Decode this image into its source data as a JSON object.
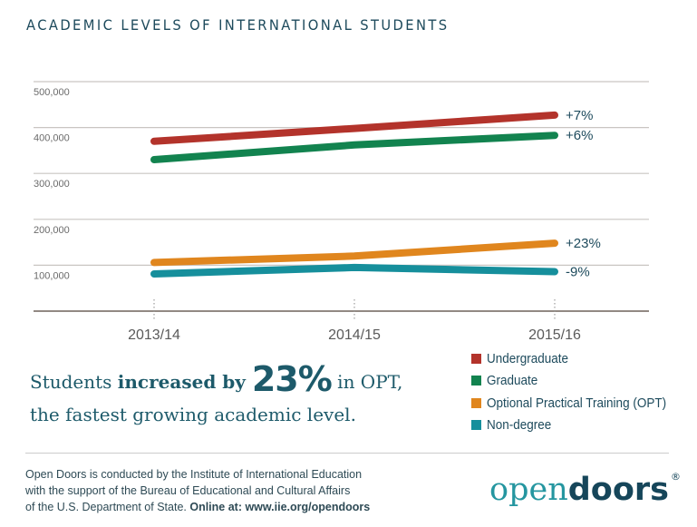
{
  "title": "ACADEMIC LEVELS OF INTERNATIONAL STUDENTS",
  "chart_data": {
    "type": "line",
    "title": "ACADEMIC LEVELS OF INTERNATIONAL STUDENTS",
    "xlabel": "",
    "ylabel": "",
    "categories": [
      "2013/14",
      "2014/15",
      "2015/16"
    ],
    "ylim": [
      0,
      500000
    ],
    "yticks": [
      100000,
      200000,
      300000,
      400000,
      500000
    ],
    "ytick_labels": [
      "100,000",
      "200,000",
      "300,000",
      "400,000",
      "500,000"
    ],
    "grid": true,
    "legend_position": "bottom-right",
    "series": [
      {
        "name": "Undergraduate",
        "color": "#b3332b",
        "values": [
          370000,
          398000,
          427000
        ],
        "end_label": "+7%"
      },
      {
        "name": "Graduate",
        "color": "#12834f",
        "values": [
          330000,
          362000,
          383000
        ],
        "end_label": "+6%"
      },
      {
        "name": "Optional Practical Training (OPT)",
        "color": "#e0861e",
        "values": [
          106000,
          120000,
          148000
        ],
        "end_label": "+23%"
      },
      {
        "name": "Non-degree",
        "color": "#168f9c",
        "values": [
          81000,
          95000,
          86000
        ],
        "end_label": "-9%"
      }
    ]
  },
  "headline": {
    "part1": "Students ",
    "part2_bold": "increased by ",
    "part3_big": "23%",
    "part4": " in OPT,",
    "line2": "the fastest growing academic level."
  },
  "footer": {
    "line1": "Open Doors is conducted by the Institute of International Education",
    "line2": "with the support of the Bureau of Educational and Cultural Affairs",
    "line3_plain": "of the U.S. Department of State. ",
    "line3_bold": "Online at: www.iie.org/opendoors"
  },
  "logo": {
    "open": "open",
    "doors": "doors",
    "registered": "®"
  }
}
